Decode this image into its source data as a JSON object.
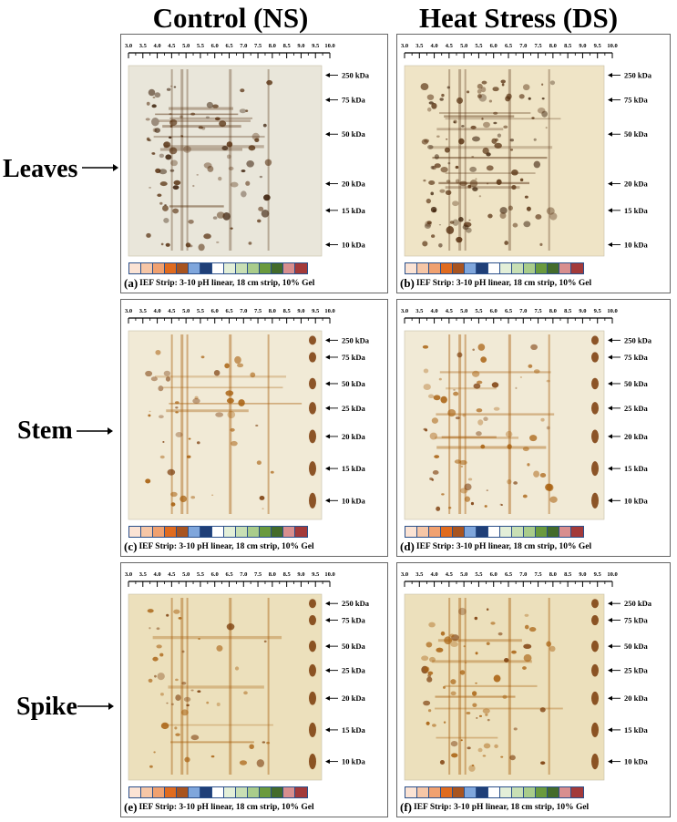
{
  "headers": {
    "control": "Control (NS)",
    "heat": "Heat Stress (DS)"
  },
  "rows": {
    "leaves": "Leaves",
    "stem": "Stem",
    "spike": "Spike"
  },
  "ph_ticks": [
    "3.0",
    "3.5",
    "4.0",
    "4.5",
    "5.0",
    "5.5",
    "6.0",
    "6.5",
    "7.0",
    "7.5",
    "8.0",
    "8.5",
    "9.0",
    "9.5",
    "10.0"
  ],
  "markers": [
    "250 kDa",
    "75 kDa",
    "50 kDa",
    "25 kDa",
    "20 kDa",
    "15 kDa",
    "10 kDa"
  ],
  "leaves_markers": [
    "250 kDa",
    "75 kDa",
    "50 kDa",
    "20 kDa",
    "15 kDa",
    "10 kDa"
  ],
  "strip_note": "IEF Strip: 3-10 pH linear, 18 cm strip, 10% Gel",
  "panels": {
    "a": "(a)",
    "b": "(b)",
    "c": "(c)",
    "d": "(d)",
    "e": "(e)",
    "f": "(f)"
  },
  "swatch_colors": [
    "#fbe3d4",
    "#f6c6a6",
    "#f0a170",
    "#e06b1f",
    "#a85420",
    "#7fa6dc",
    "#1f3f78",
    "#ffffff",
    "#e3efd8",
    "#c8dfb4",
    "#a9cc8b",
    "#6a9a3e",
    "#436b2b",
    "#d88e8e",
    "#a33a3a"
  ]
}
